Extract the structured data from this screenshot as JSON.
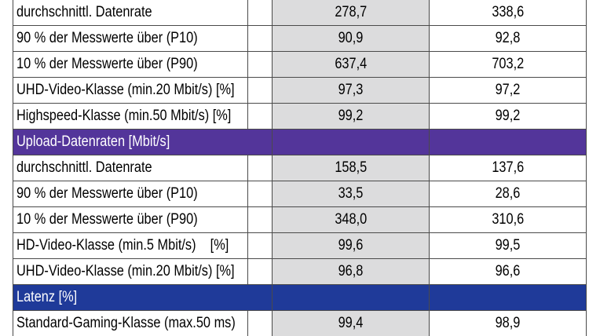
{
  "colors": {
    "upload_header": "#53359a",
    "latenz_header": "#1f3a99",
    "value_column_shade": "#dcdcdd"
  },
  "rows": [
    {
      "kind": "data",
      "label": "durchschnittl. Datenrate",
      "v1": "278,7",
      "v2": "338,6"
    },
    {
      "kind": "data",
      "label": "90 % der Messwerte über (P10)",
      "v1": "90,9",
      "v2": "92,8"
    },
    {
      "kind": "data",
      "label": "10 % der Messwerte über (P90)",
      "v1": "637,4",
      "v2": "703,2"
    },
    {
      "kind": "data",
      "label": "UHD-Video-Klasse (min.20 Mbit/s) [%]",
      "v1": "97,3",
      "v2": "97,2"
    },
    {
      "kind": "data",
      "label": "Highspeed-Klasse (min.50 Mbit/s) [%]",
      "v1": "99,2",
      "v2": "99,2"
    },
    {
      "kind": "section",
      "style": "upload",
      "label": "Upload-Datenraten [Mbit/s]"
    },
    {
      "kind": "data",
      "label": "durchschnittl. Datenrate",
      "v1": "158,5",
      "v2": "137,6"
    },
    {
      "kind": "data",
      "label": "90 % der Messwerte über (P10)",
      "v1": "33,5",
      "v2": "28,6"
    },
    {
      "kind": "data",
      "label": "10 % der Messwerte über (P90)",
      "v1": "348,0",
      "v2": "310,6"
    },
    {
      "kind": "data",
      "label": "HD-Video-Klasse (min.5 Mbit/s)    [%]",
      "v1": "99,6",
      "v2": "99,5"
    },
    {
      "kind": "data",
      "label": "UHD-Video-Klasse (min.20 Mbit/s) [%]",
      "v1": "96,8",
      "v2": "96,6"
    },
    {
      "kind": "section",
      "style": "latenz",
      "label": "Latenz [%]"
    },
    {
      "kind": "data",
      "label": "Standard-Gaming-Klasse (max.50 ms)",
      "v1": "99,4",
      "v2": "98,9"
    }
  ]
}
